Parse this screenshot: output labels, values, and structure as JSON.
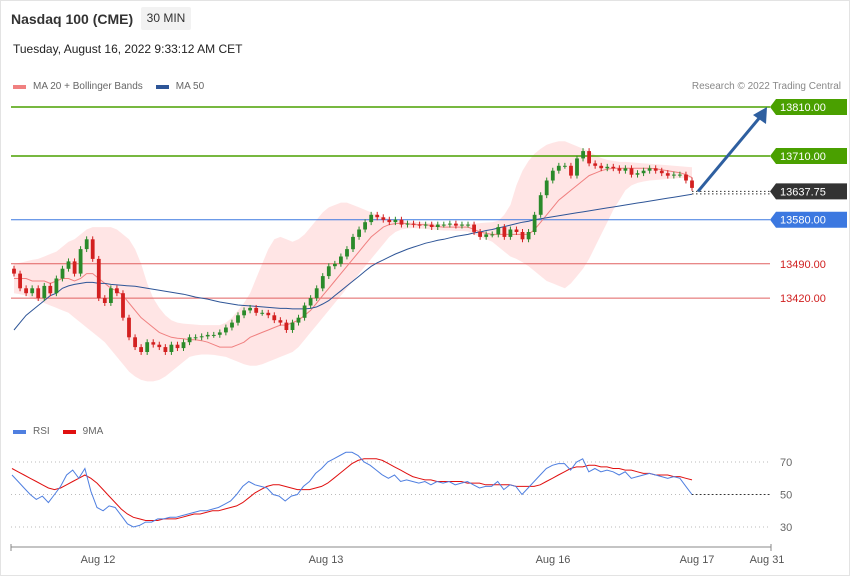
{
  "header": {
    "instrument": "Nasdaq 100 (CME)",
    "timeframe": "30 MIN",
    "datetime": "Tuesday, August 16, 2022 9:33:12 AM CET",
    "credit": "Research © 2022 Trading Central"
  },
  "colors": {
    "ma20": "#f08080",
    "bands_fill": "#ffe0e0",
    "ma50": "#2e5597",
    "up_candle": "#2a8a2a",
    "down_candle": "#d32020",
    "resistance": "#4aa000",
    "pivot": "#3c78e0",
    "support": "#e06060",
    "current_tag": "#333333",
    "arrow": "#2e5fa0",
    "rsi": "#4f7fe0",
    "rsi_ma": "#e01010"
  },
  "chart_data": [
    {
      "type": "candlestick",
      "legend": [
        {
          "name": "MA 20 + Bollinger Bands",
          "color": "#f08080"
        },
        {
          "name": "MA 50",
          "color": "#2e5597"
        }
      ],
      "x_labels": [
        "Aug 12",
        "Aug 13",
        "Aug 16",
        "Aug 17",
        "Aug 31"
      ],
      "ylim": [
        13235,
        13820
      ],
      "levels": [
        {
          "label": "13810.00",
          "value": 13810,
          "kind": "resistance"
        },
        {
          "label": "13710.00",
          "value": 13710,
          "kind": "resistance"
        },
        {
          "label": "13580.00",
          "value": 13580,
          "kind": "pivot"
        },
        {
          "label": "13490.00",
          "value": 13490,
          "kind": "support"
        },
        {
          "label": "13420.00",
          "value": 13420,
          "kind": "support"
        }
      ],
      "current_price": {
        "label": "13637.75",
        "value": 13637.75
      },
      "forecast_target": 13810,
      "close": [
        13470,
        13440,
        13430,
        13440,
        13420,
        13445,
        13430,
        13460,
        13480,
        13495,
        13470,
        13520,
        13540,
        13500,
        13420,
        13410,
        13440,
        13430,
        13380,
        13340,
        13320,
        13310,
        13330,
        13325,
        13320,
        13310,
        13325,
        13318,
        13330,
        13340,
        13340,
        13342,
        13345,
        13345,
        13350,
        13360,
        13370,
        13385,
        13395,
        13400,
        13390,
        13390,
        13385,
        13375,
        13370,
        13355,
        13370,
        13380,
        13405,
        13420,
        13440,
        13465,
        13485,
        13490,
        13505,
        13520,
        13545,
        13560,
        13575,
        13590,
        13585,
        13580,
        13575,
        13580,
        13570,
        13572,
        13570,
        13568,
        13570,
        13565,
        13570,
        13570,
        13572,
        13568,
        13570,
        13570,
        13555,
        13545,
        13550,
        13550,
        13565,
        13545,
        13560,
        13555,
        13540,
        13555,
        13590,
        13630,
        13660,
        13680,
        13690,
        13690,
        13670,
        13705,
        13720,
        13695,
        13690,
        13685,
        13688,
        13685,
        13680,
        13685,
        13672,
        13675,
        13680,
        13685,
        13680,
        13675,
        13670,
        13672,
        13672,
        13660,
        13645
      ],
      "ma20": [
        13460,
        13460,
        13460,
        13455,
        13455,
        13455,
        13450,
        13455,
        13460,
        13460,
        13455,
        13460,
        13470,
        13470,
        13460,
        13450,
        13440,
        13435,
        13425,
        13410,
        13395,
        13380,
        13370,
        13360,
        13350,
        13345,
        13340,
        13338,
        13337,
        13335,
        13335,
        13333,
        13330,
        13325,
        13320,
        13320,
        13320,
        13325,
        13330,
        13340,
        13345,
        13350,
        13355,
        13360,
        13365,
        13365,
        13370,
        13375,
        13385,
        13395,
        13410,
        13425,
        13440,
        13455,
        13470,
        13485,
        13500,
        13515,
        13530,
        13545,
        13555,
        13565,
        13570,
        13572,
        13573,
        13572,
        13570,
        13570,
        13570,
        13568,
        13566,
        13565,
        13565,
        13565,
        13565,
        13565,
        13560,
        13555,
        13552,
        13550,
        13550,
        13550,
        13550,
        13550,
        13550,
        13550,
        13560,
        13575,
        13590,
        13605,
        13620,
        13630,
        13640,
        13650,
        13660,
        13670,
        13675,
        13680,
        13683,
        13685,
        13685,
        13685,
        13685,
        13685,
        13685,
        13685,
        13684,
        13682,
        13680,
        13678,
        13676,
        13672,
        13666
      ],
      "upper_band": [
        13490,
        13492,
        13495,
        13498,
        13500,
        13505,
        13510,
        13515,
        13525,
        13535,
        13540,
        13550,
        13560,
        13565,
        13565,
        13565,
        13565,
        13560,
        13550,
        13540,
        13520,
        13490,
        13450,
        13420,
        13400,
        13385,
        13375,
        13370,
        13368,
        13367,
        13366,
        13365,
        13365,
        13365,
        13365,
        13370,
        13380,
        13395,
        13410,
        13430,
        13460,
        13490,
        13520,
        13540,
        13545,
        13540,
        13535,
        13540,
        13550,
        13565,
        13580,
        13595,
        13605,
        13610,
        13615,
        13615,
        13610,
        13605,
        13600,
        13595,
        13590,
        13585,
        13582,
        13580,
        13578,
        13577,
        13576,
        13575,
        13574,
        13573,
        13572,
        13571,
        13571,
        13571,
        13571,
        13572,
        13572,
        13573,
        13574,
        13575,
        13578,
        13590,
        13610,
        13650,
        13680,
        13700,
        13715,
        13725,
        13733,
        13737,
        13740,
        13740,
        13735,
        13730,
        13725,
        13720,
        13712,
        13706,
        13702,
        13700,
        13698,
        13698,
        13697,
        13696,
        13695,
        13694,
        13693,
        13692,
        13691,
        13690,
        13689,
        13688,
        13687
      ],
      "lower_band": [
        13430,
        13428,
        13425,
        13420,
        13415,
        13410,
        13405,
        13400,
        13395,
        13390,
        13380,
        13370,
        13360,
        13350,
        13340,
        13330,
        13315,
        13300,
        13285,
        13270,
        13260,
        13253,
        13250,
        13250,
        13253,
        13260,
        13270,
        13280,
        13290,
        13300,
        13303,
        13305,
        13305,
        13304,
        13302,
        13300,
        13295,
        13290,
        13285,
        13282,
        13282,
        13285,
        13290,
        13295,
        13300,
        13305,
        13310,
        13320,
        13335,
        13350,
        13365,
        13380,
        13395,
        13410,
        13425,
        13440,
        13455,
        13470,
        13485,
        13500,
        13515,
        13530,
        13545,
        13555,
        13560,
        13562,
        13563,
        13562,
        13561,
        13560,
        13559,
        13558,
        13558,
        13557,
        13557,
        13556,
        13550,
        13545,
        13540,
        13535,
        13525,
        13515,
        13505,
        13500,
        13493,
        13485,
        13475,
        13465,
        13455,
        13450,
        13445,
        13440,
        13450,
        13465,
        13480,
        13500,
        13525,
        13550,
        13575,
        13600,
        13620,
        13640,
        13650,
        13655,
        13658,
        13660,
        13661,
        13662,
        13663,
        13664,
        13665,
        13665,
        13665
      ],
      "ma50": [
        13355,
        13370,
        13385,
        13395,
        13405,
        13415,
        13425,
        13430,
        13440,
        13445,
        13448,
        13450,
        13452,
        13452,
        13450,
        13450,
        13448,
        13447,
        13446,
        13445,
        13444,
        13442,
        13440,
        13438,
        13436,
        13434,
        13432,
        13430,
        13428,
        13425,
        13422,
        13420,
        13418,
        13415,
        13412,
        13410,
        13408,
        13406,
        13405,
        13404,
        13403,
        13402,
        13401,
        13400,
        13399,
        13399,
        13398,
        13398,
        13398,
        13399,
        13402,
        13408,
        13415,
        13425,
        13435,
        13445,
        13455,
        13465,
        13475,
        13485,
        13492,
        13498,
        13504,
        13510,
        13515,
        13520,
        13524,
        13528,
        13532,
        13535,
        13538,
        13540,
        13543,
        13546,
        13548,
        13550,
        13553,
        13555,
        13558,
        13560,
        13563,
        13566,
        13569,
        13572,
        13575,
        13577,
        13580,
        13582,
        13584,
        13586,
        13588,
        13590,
        13592,
        13594,
        13596,
        13598,
        13600,
        13602,
        13604,
        13606,
        13608,
        13610,
        13612,
        13614,
        13616,
        13618,
        13620,
        13622,
        13624,
        13626,
        13628,
        13630,
        13632
      ]
    },
    {
      "type": "line",
      "legend": [
        {
          "name": "RSI",
          "color": "#4f7fe0"
        },
        {
          "name": "9MA",
          "color": "#e01010"
        }
      ],
      "ylim": [
        25,
        80
      ],
      "y_ticks": [
        70,
        50,
        30
      ],
      "rsi": [
        62,
        58,
        54,
        50,
        47,
        49,
        45,
        50,
        55,
        62,
        65,
        60,
        66,
        52,
        42,
        40,
        43,
        42,
        37,
        32,
        30,
        31,
        33,
        33,
        35,
        35,
        36,
        36,
        37,
        38,
        39,
        40,
        40,
        41,
        42,
        44,
        46,
        50,
        55,
        58,
        56,
        55,
        54,
        50,
        49,
        46,
        49,
        50,
        55,
        58,
        63,
        66,
        70,
        72,
        74,
        76,
        76,
        74,
        70,
        68,
        65,
        62,
        60,
        62,
        58,
        59,
        58,
        57,
        58,
        56,
        58,
        57,
        58,
        56,
        57,
        58,
        56,
        54,
        55,
        55,
        58,
        53,
        56,
        55,
        50,
        54,
        58,
        62,
        66,
        68,
        69,
        69,
        65,
        70,
        72,
        64,
        66,
        64,
        65,
        64,
        62,
        64,
        60,
        61,
        62,
        63,
        62,
        61,
        60,
        61,
        60,
        55,
        50
      ],
      "rsi_ma": [
        66,
        64,
        62,
        60,
        58,
        56,
        54,
        53,
        54,
        56,
        58,
        60,
        62,
        60,
        57,
        53,
        49,
        45,
        41,
        38,
        36,
        35,
        34,
        34,
        34,
        35,
        35,
        35,
        36,
        37,
        38,
        38,
        39,
        40,
        40,
        41,
        42,
        43,
        45,
        48,
        51,
        53,
        55,
        56,
        56,
        55,
        54,
        53,
        53,
        53,
        54,
        55,
        57,
        60,
        63,
        66,
        69,
        71,
        72,
        72,
        72,
        71,
        69,
        67,
        65,
        63,
        61,
        60,
        59,
        59,
        58,
        58,
        58,
        58,
        58,
        57,
        57,
        57,
        56,
        56,
        56,
        56,
        56,
        55,
        55,
        55,
        55,
        56,
        58,
        60,
        62,
        64,
        66,
        67,
        67,
        68,
        68,
        67,
        67,
        66,
        66,
        65,
        65,
        64,
        63,
        63,
        62,
        62,
        62,
        61,
        61,
        60,
        59
      ]
    }
  ]
}
